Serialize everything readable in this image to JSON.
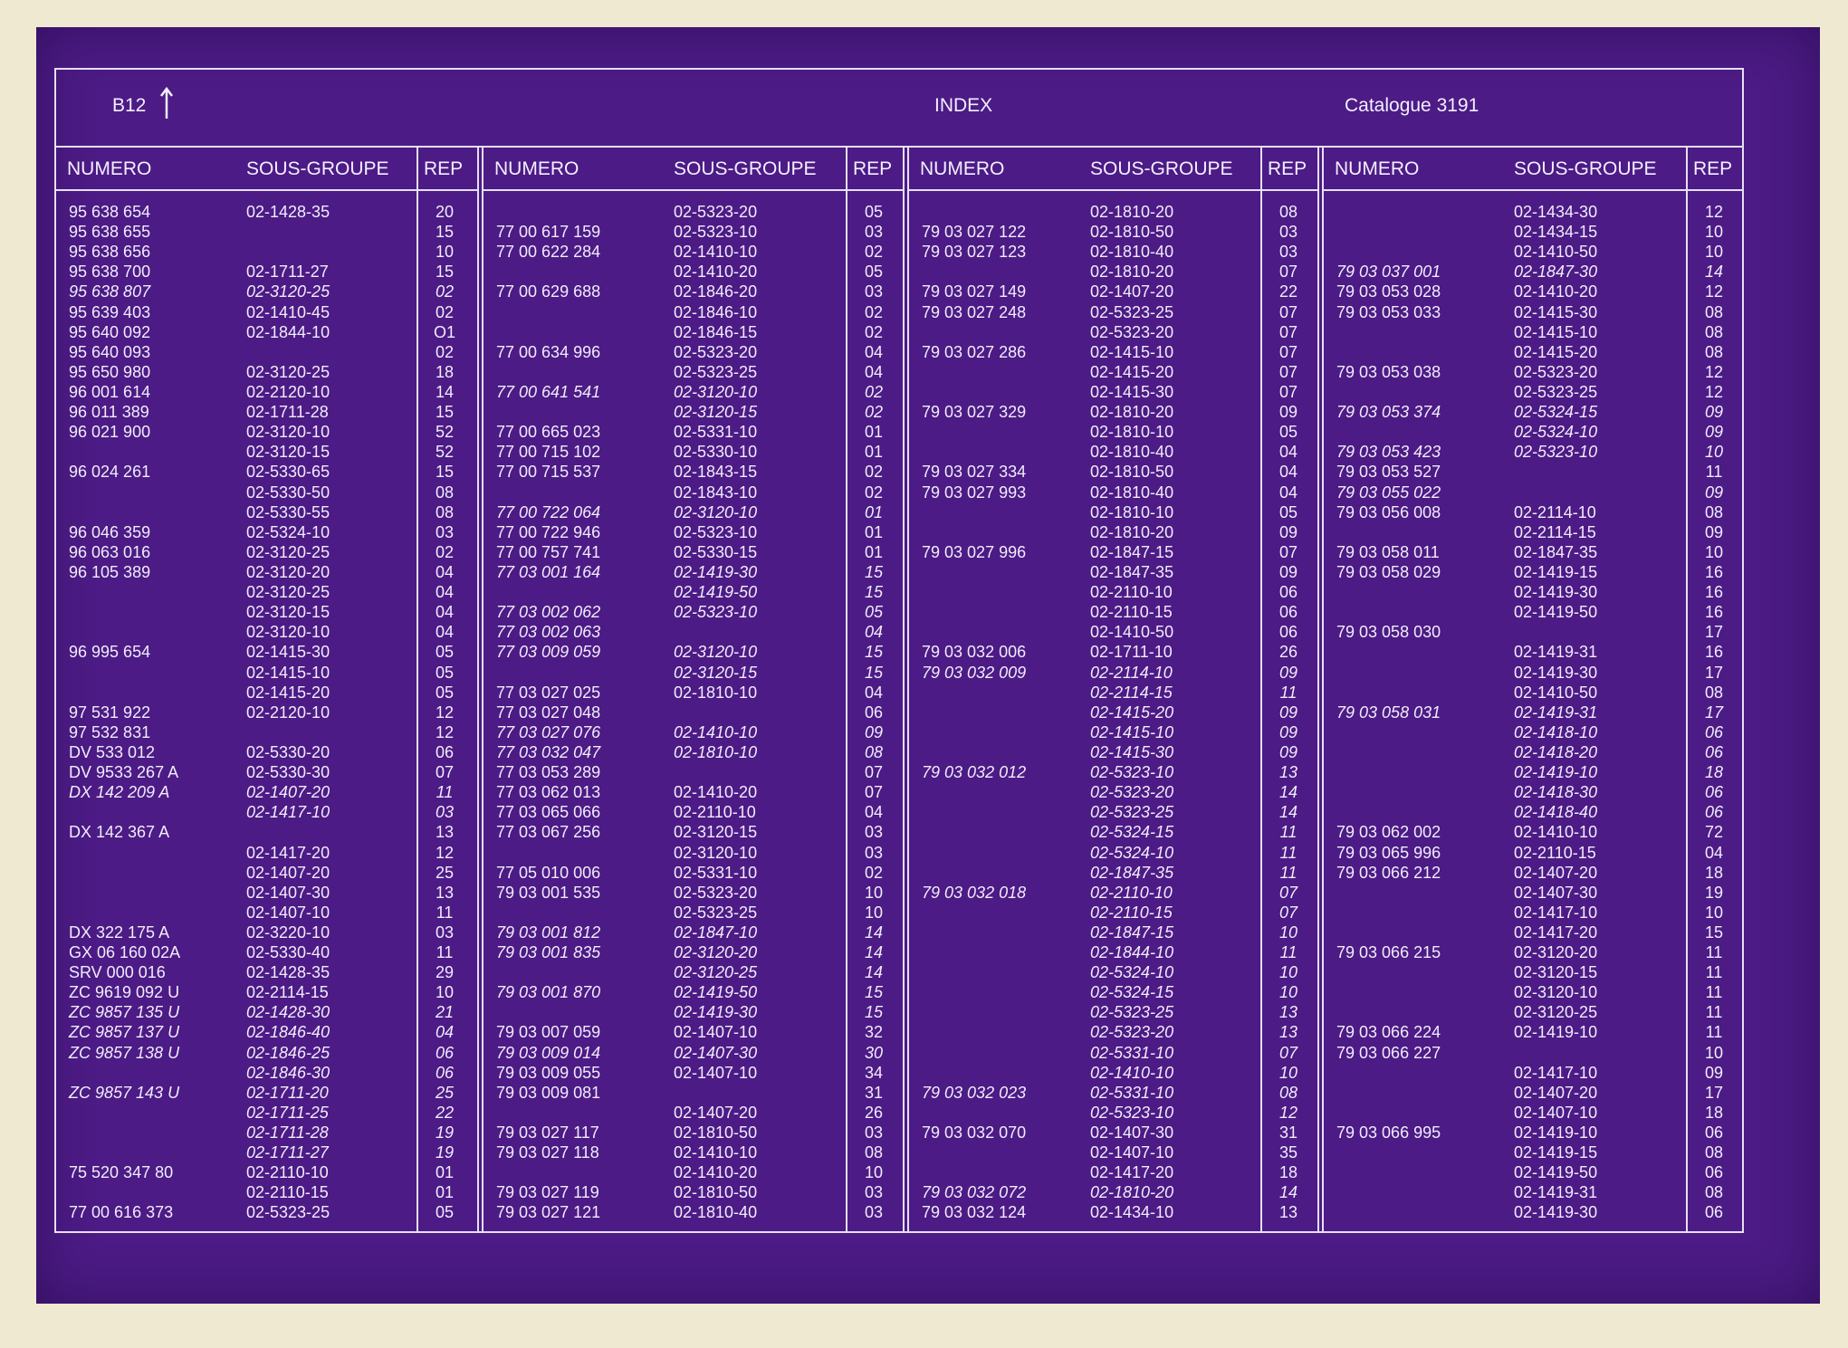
{
  "header": {
    "page": "B12",
    "title": "INDEX",
    "catalogue": "Catalogue 3191"
  },
  "column_headers": {
    "numero": "NUMERO",
    "sous_groupe": "SOUS-GROUPE",
    "rep": "REP"
  },
  "columns": [
    [
      {
        "n": "95 638 654",
        "s": "02-1428-35",
        "r": "20"
      },
      {
        "n": "95 638 655",
        "s": "",
        "r": "15"
      },
      {
        "n": "95 638 656",
        "s": "",
        "r": "10"
      },
      {
        "n": "95 638 700",
        "s": "02-1711-27",
        "r": "15"
      },
      {
        "n": "95 638 807",
        "s": "02-3120-25",
        "r": "02",
        "i": true
      },
      {
        "n": "95 639 403",
        "s": "02-1410-45",
        "r": "02"
      },
      {
        "n": "95 640 092",
        "s": "02-1844-10",
        "r": "O1"
      },
      {
        "n": "95 640 093",
        "s": "",
        "r": "02"
      },
      {
        "n": "95 650 980",
        "s": "02-3120-25",
        "r": "18"
      },
      {
        "n": "96 001 614",
        "s": "02-2120-10",
        "r": "14"
      },
      {
        "n": "96 011 389",
        "s": "02-1711-28",
        "r": "15"
      },
      {
        "n": "96 021 900",
        "s": "02-3120-10",
        "r": "52"
      },
      {
        "n": "",
        "s": "02-3120-15",
        "r": "52"
      },
      {
        "n": "96 024 261",
        "s": "02-5330-65",
        "r": "15"
      },
      {
        "n": "",
        "s": "02-5330-50",
        "r": "08"
      },
      {
        "n": "",
        "s": "02-5330-55",
        "r": "08"
      },
      {
        "n": "96 046 359",
        "s": "02-5324-10",
        "r": "03"
      },
      {
        "n": "96 063 016",
        "s": "02-3120-25",
        "r": "02"
      },
      {
        "n": "96 105 389",
        "s": "02-3120-20",
        "r": "04"
      },
      {
        "n": "",
        "s": "02-3120-25",
        "r": "04"
      },
      {
        "n": "",
        "s": "02-3120-15",
        "r": "04"
      },
      {
        "n": "",
        "s": "02-3120-10",
        "r": "04"
      },
      {
        "n": "96 995 654",
        "s": "02-1415-30",
        "r": "05"
      },
      {
        "n": "",
        "s": "02-1415-10",
        "r": "05"
      },
      {
        "n": "",
        "s": "02-1415-20",
        "r": "05"
      },
      {
        "n": "97 531 922",
        "s": "02-2120-10",
        "r": "12"
      },
      {
        "n": "97 532 831",
        "s": "",
        "r": "12"
      },
      {
        "n": "DV 533 012",
        "s": "02-5330-20",
        "r": "06"
      },
      {
        "n": "DV 9533 267 A",
        "s": "02-5330-30",
        "r": "07"
      },
      {
        "n": "DX 142 209 A",
        "s": "02-1407-20",
        "r": "11",
        "i": true
      },
      {
        "n": "",
        "s": "02-1417-10",
        "r": "03",
        "i": true
      },
      {
        "n": "DX 142 367 A",
        "s": "",
        "r": "13"
      },
      {
        "n": "",
        "s": "02-1417-20",
        "r": "12"
      },
      {
        "n": "",
        "s": "02-1407-20",
        "r": "25"
      },
      {
        "n": "",
        "s": "02-1407-30",
        "r": "13"
      },
      {
        "n": "",
        "s": "02-1407-10",
        "r": "11"
      },
      {
        "n": "DX 322 175 A",
        "s": "02-3220-10",
        "r": "03"
      },
      {
        "n": "GX 06 160 02A",
        "s": "02-5330-40",
        "r": "11"
      },
      {
        "n": "SRV 000 016",
        "s": "02-1428-35",
        "r": "29"
      },
      {
        "n": "ZC 9619 092 U",
        "s": "02-2114-15",
        "r": "10"
      },
      {
        "n": "ZC 9857 135 U",
        "s": "02-1428-30",
        "r": "21",
        "i": true
      },
      {
        "n": "ZC 9857 137 U",
        "s": "02-1846-40",
        "r": "04",
        "i": true
      },
      {
        "n": "ZC 9857 138 U",
        "s": "02-1846-25",
        "r": "06",
        "i": true
      },
      {
        "n": "",
        "s": "02-1846-30",
        "r": "06",
        "i": true
      },
      {
        "n": "ZC 9857 143 U",
        "s": "02-1711-20",
        "r": "25",
        "i": true
      },
      {
        "n": "",
        "s": "02-1711-25",
        "r": "22",
        "i": true
      },
      {
        "n": "",
        "s": "02-1711-28",
        "r": "19",
        "i": true
      },
      {
        "n": "",
        "s": "02-1711-27",
        "r": "19",
        "i": true
      },
      {
        "n": "75 520 347 80",
        "s": "02-2110-10",
        "r": "01"
      },
      {
        "n": "",
        "s": "02-2110-15",
        "r": "01"
      },
      {
        "n": "77 00 616 373",
        "s": "02-5323-25",
        "r": "05"
      }
    ],
    [
      {
        "n": "",
        "s": "02-5323-20",
        "r": "05"
      },
      {
        "n": "77 00 617 159",
        "s": "02-5323-10",
        "r": "03"
      },
      {
        "n": "77 00 622 284",
        "s": "02-1410-10",
        "r": "02"
      },
      {
        "n": "",
        "s": "02-1410-20",
        "r": "05"
      },
      {
        "n": "77 00 629 688",
        "s": "02-1846-20",
        "r": "03"
      },
      {
        "n": "",
        "s": "02-1846-10",
        "r": "02"
      },
      {
        "n": "",
        "s": "02-1846-15",
        "r": "02"
      },
      {
        "n": "77 00 634 996",
        "s": "02-5323-20",
        "r": "04"
      },
      {
        "n": "",
        "s": "02-5323-25",
        "r": "04"
      },
      {
        "n": "77 00 641 541",
        "s": "02-3120-10",
        "r": "02",
        "i": true
      },
      {
        "n": "",
        "s": "02-3120-15",
        "r": "02",
        "i": true
      },
      {
        "n": "77 00 665 023",
        "s": "02-5331-10",
        "r": "01"
      },
      {
        "n": "77 00 715 102",
        "s": "02-5330-10",
        "r": "01"
      },
      {
        "n": "77 00 715 537",
        "s": "02-1843-15",
        "r": "02"
      },
      {
        "n": "",
        "s": "02-1843-10",
        "r": "02"
      },
      {
        "n": "77 00 722 064",
        "s": "02-3120-10",
        "r": "01",
        "i": true
      },
      {
        "n": "77 00 722 946",
        "s": "02-5323-10",
        "r": "01"
      },
      {
        "n": "77 00 757 741",
        "s": "02-5330-15",
        "r": "01"
      },
      {
        "n": "77 03 001 164",
        "s": "02-1419-30",
        "r": "15",
        "i": true
      },
      {
        "n": "",
        "s": "02-1419-50",
        "r": "15",
        "i": true
      },
      {
        "n": "77 03 002 062",
        "s": "02-5323-10",
        "r": "05",
        "i": true
      },
      {
        "n": "77 03 002 063",
        "s": "",
        "r": "04",
        "i": true
      },
      {
        "n": "77 03 009 059",
        "s": "02-3120-10",
        "r": "15",
        "i": true
      },
      {
        "n": "",
        "s": "02-3120-15",
        "r": "15",
        "i": true
      },
      {
        "n": "77 03 027 025",
        "s": "02-1810-10",
        "r": "04"
      },
      {
        "n": "77 03 027 048",
        "s": "",
        "r": "06"
      },
      {
        "n": "77 03 027 076",
        "s": "02-1410-10",
        "r": "09",
        "i": true
      },
      {
        "n": "77 03 032 047",
        "s": "02-1810-10",
        "r": "08",
        "i": true
      },
      {
        "n": "77 03 053 289",
        "s": "",
        "r": "07"
      },
      {
        "n": "77 03 062 013",
        "s": "02-1410-20",
        "r": "07"
      },
      {
        "n": "77 03 065 066",
        "s": "02-2110-10",
        "r": "04"
      },
      {
        "n": "77 03 067 256",
        "s": "02-3120-15",
        "r": "03"
      },
      {
        "n": "",
        "s": "02-3120-10",
        "r": "03"
      },
      {
        "n": "77 05 010 006",
        "s": "02-5331-10",
        "r": "02"
      },
      {
        "n": "79 03 001 535",
        "s": "02-5323-20",
        "r": "10"
      },
      {
        "n": "",
        "s": "02-5323-25",
        "r": "10"
      },
      {
        "n": "79 03 001 812",
        "s": "02-1847-10",
        "r": "14",
        "i": true
      },
      {
        "n": "79 03 001 835",
        "s": "02-3120-20",
        "r": "14",
        "i": true
      },
      {
        "n": "",
        "s": "02-3120-25",
        "r": "14",
        "i": true
      },
      {
        "n": "79 03 001 870",
        "s": "02-1419-50",
        "r": "15",
        "i": true
      },
      {
        "n": "",
        "s": "02-1419-30",
        "r": "15",
        "i": true
      },
      {
        "n": "79 03 007 059",
        "s": "02-1407-10",
        "r": "32"
      },
      {
        "n": "79 03 009 014",
        "s": "02-1407-30",
        "r": "30",
        "i": true
      },
      {
        "n": "79 03 009 055",
        "s": "02-1407-10",
        "r": "34"
      },
      {
        "n": "79 03 009 081",
        "s": "",
        "r": "31"
      },
      {
        "n": "",
        "s": "02-1407-20",
        "r": "26"
      },
      {
        "n": "79 03 027 117",
        "s": "02-1810-50",
        "r": "03"
      },
      {
        "n": "79 03 027 118",
        "s": "02-1410-10",
        "r": "08"
      },
      {
        "n": "",
        "s": "02-1410-20",
        "r": "10"
      },
      {
        "n": "79 03 027 119",
        "s": "02-1810-50",
        "r": "03"
      },
      {
        "n": "79 03 027 121",
        "s": "02-1810-40",
        "r": "03"
      }
    ],
    [
      {
        "n": "",
        "s": "02-1810-20",
        "r": "08"
      },
      {
        "n": "79 03 027 122",
        "s": "02-1810-50",
        "r": "03"
      },
      {
        "n": "79 03 027 123",
        "s": "02-1810-40",
        "r": "03"
      },
      {
        "n": "",
        "s": "02-1810-20",
        "r": "07"
      },
      {
        "n": "79 03 027 149",
        "s": "02-1407-20",
        "r": "22"
      },
      {
        "n": "79 03 027 248",
        "s": "02-5323-25",
        "r": "07"
      },
      {
        "n": "",
        "s": "02-5323-20",
        "r": "07"
      },
      {
        "n": "79 03 027 286",
        "s": "02-1415-10",
        "r": "07"
      },
      {
        "n": "",
        "s": "02-1415-20",
        "r": "07"
      },
      {
        "n": "",
        "s": "02-1415-30",
        "r": "07"
      },
      {
        "n": "79 03 027 329",
        "s": "02-1810-20",
        "r": "09"
      },
      {
        "n": "",
        "s": "02-1810-10",
        "r": "05"
      },
      {
        "n": "",
        "s": "02-1810-40",
        "r": "04"
      },
      {
        "n": "79 03 027 334",
        "s": "02-1810-50",
        "r": "04"
      },
      {
        "n": "79 03 027 993",
        "s": "02-1810-40",
        "r": "04"
      },
      {
        "n": "",
        "s": "02-1810-10",
        "r": "05"
      },
      {
        "n": "",
        "s": "02-1810-20",
        "r": "09"
      },
      {
        "n": "79 03 027 996",
        "s": "02-1847-15",
        "r": "07"
      },
      {
        "n": "",
        "s": "02-1847-35",
        "r": "09"
      },
      {
        "n": "",
        "s": "02-2110-10",
        "r": "06"
      },
      {
        "n": "",
        "s": "02-2110-15",
        "r": "06"
      },
      {
        "n": "",
        "s": "02-1410-50",
        "r": "06"
      },
      {
        "n": "79 03 032 006",
        "s": "02-1711-10",
        "r": "26"
      },
      {
        "n": "79 03 032 009",
        "s": "02-2114-10",
        "r": "09",
        "i": true
      },
      {
        "n": "",
        "s": "02-2114-15",
        "r": "11",
        "i": true
      },
      {
        "n": "",
        "s": "02-1415-20",
        "r": "09",
        "i": true
      },
      {
        "n": "",
        "s": "02-1415-10",
        "r": "09",
        "i": true
      },
      {
        "n": "",
        "s": "02-1415-30",
        "r": "09",
        "i": true
      },
      {
        "n": "79 03 032 012",
        "s": "02-5323-10",
        "r": "13",
        "i": true
      },
      {
        "n": "",
        "s": "02-5323-20",
        "r": "14",
        "i": true
      },
      {
        "n": "",
        "s": "02-5323-25",
        "r": "14",
        "i": true
      },
      {
        "n": "",
        "s": "02-5324-15",
        "r": "11",
        "i": true
      },
      {
        "n": "",
        "s": "02-5324-10",
        "r": "11",
        "i": true
      },
      {
        "n": "",
        "s": "02-1847-35",
        "r": "11",
        "i": true
      },
      {
        "n": "79 03 032 018",
        "s": "02-2110-10",
        "r": "07",
        "i": true
      },
      {
        "n": "",
        "s": "02-2110-15",
        "r": "07",
        "i": true
      },
      {
        "n": "",
        "s": "02-1847-15",
        "r": "10",
        "i": true
      },
      {
        "n": "",
        "s": "02-1844-10",
        "r": "11",
        "i": true
      },
      {
        "n": "",
        "s": "02-5324-10",
        "r": "10",
        "i": true
      },
      {
        "n": "",
        "s": "02-5324-15",
        "r": "10",
        "i": true
      },
      {
        "n": "",
        "s": "02-5323-25",
        "r": "13",
        "i": true
      },
      {
        "n": "",
        "s": "02-5323-20",
        "r": "13",
        "i": true
      },
      {
        "n": "",
        "s": "02-5331-10",
        "r": "07",
        "i": true
      },
      {
        "n": "",
        "s": "02-1410-10",
        "r": "10",
        "i": true
      },
      {
        "n": "79 03 032 023",
        "s": "02-5331-10",
        "r": "08",
        "i": true
      },
      {
        "n": "",
        "s": "02-5323-10",
        "r": "12",
        "i": true
      },
      {
        "n": "79 03 032 070",
        "s": "02-1407-30",
        "r": "31"
      },
      {
        "n": "",
        "s": "02-1407-10",
        "r": "35"
      },
      {
        "n": "",
        "s": "02-1417-20",
        "r": "18"
      },
      {
        "n": "79 03 032 072",
        "s": "02-1810-20",
        "r": "14",
        "i": true
      },
      {
        "n": "79 03 032 124",
        "s": "02-1434-10",
        "r": "13"
      }
    ],
    [
      {
        "n": "",
        "s": "02-1434-30",
        "r": "12"
      },
      {
        "n": "",
        "s": "02-1434-15",
        "r": "10"
      },
      {
        "n": "",
        "s": "02-1410-50",
        "r": "10"
      },
      {
        "n": "79 03 037 001",
        "s": "02-1847-30",
        "r": "14",
        "i": true
      },
      {
        "n": "79 03 053 028",
        "s": "02-1410-20",
        "r": "12"
      },
      {
        "n": "79 03 053 033",
        "s": "02-1415-30",
        "r": "08"
      },
      {
        "n": "",
        "s": "02-1415-10",
        "r": "08"
      },
      {
        "n": "",
        "s": "02-1415-20",
        "r": "08"
      },
      {
        "n": "79 03 053 038",
        "s": "02-5323-20",
        "r": "12"
      },
      {
        "n": "",
        "s": "02-5323-25",
        "r": "12"
      },
      {
        "n": "79 03 053 374",
        "s": "02-5324-15",
        "r": "09",
        "i": true
      },
      {
        "n": "",
        "s": "02-5324-10",
        "r": "09",
        "i": true
      },
      {
        "n": "79 03 053 423",
        "s": "02-5323-10",
        "r": "10",
        "i": true
      },
      {
        "n": "79 03 053 527",
        "s": "",
        "r": "11"
      },
      {
        "n": "79 03 055 022",
        "s": "",
        "r": "09",
        "i": true
      },
      {
        "n": "79 03 056 008",
        "s": "02-2114-10",
        "r": "08"
      },
      {
        "n": "",
        "s": "02-2114-15",
        "r": "09"
      },
      {
        "n": "79 03 058 011",
        "s": "02-1847-35",
        "r": "10"
      },
      {
        "n": "79 03 058 029",
        "s": "02-1419-15",
        "r": "16"
      },
      {
        "n": "",
        "s": "02-1419-30",
        "r": "16"
      },
      {
        "n": "",
        "s": "02-1419-50",
        "r": "16"
      },
      {
        "n": "79 03 058 030",
        "s": "",
        "r": "17"
      },
      {
        "n": "",
        "s": "02-1419-31",
        "r": "16"
      },
      {
        "n": "",
        "s": "02-1419-30",
        "r": "17"
      },
      {
        "n": "",
        "s": "02-1410-50",
        "r": "08"
      },
      {
        "n": "79 03 058 031",
        "s": "02-1419-31",
        "r": "17",
        "i": true
      },
      {
        "n": "",
        "s": "02-1418-10",
        "r": "06",
        "i": true
      },
      {
        "n": "",
        "s": "02-1418-20",
        "r": "06",
        "i": true
      },
      {
        "n": "",
        "s": "02-1419-10",
        "r": "18",
        "i": true
      },
      {
        "n": "",
        "s": "02-1418-30",
        "r": "06",
        "i": true
      },
      {
        "n": "",
        "s": "02-1418-40",
        "r": "06",
        "i": true
      },
      {
        "n": "79 03 062 002",
        "s": "02-1410-10",
        "r": "72"
      },
      {
        "n": "79 03 065 996",
        "s": "02-2110-15",
        "r": "04"
      },
      {
        "n": "79 03 066 212",
        "s": "02-1407-20",
        "r": "18"
      },
      {
        "n": "",
        "s": "02-1407-30",
        "r": "19"
      },
      {
        "n": "",
        "s": "02-1417-10",
        "r": "10"
      },
      {
        "n": "",
        "s": "02-1417-20",
        "r": "15"
      },
      {
        "n": "79 03 066 215",
        "s": "02-3120-20",
        "r": "11"
      },
      {
        "n": "",
        "s": "02-3120-15",
        "r": "11"
      },
      {
        "n": "",
        "s": "02-3120-10",
        "r": "11"
      },
      {
        "n": "",
        "s": "02-3120-25",
        "r": "11"
      },
      {
        "n": "79 03 066 224",
        "s": "02-1419-10",
        "r": "11"
      },
      {
        "n": "79 03 066 227",
        "s": "",
        "r": "10"
      },
      {
        "n": "",
        "s": "02-1417-10",
        "r": "09"
      },
      {
        "n": "",
        "s": "02-1407-20",
        "r": "17"
      },
      {
        "n": "",
        "s": "02-1407-10",
        "r": "18"
      },
      {
        "n": "79 03 066 995",
        "s": "02-1419-10",
        "r": "06"
      },
      {
        "n": "",
        "s": "02-1419-15",
        "r": "08"
      },
      {
        "n": "",
        "s": "02-1419-50",
        "r": "06"
      },
      {
        "n": "",
        "s": "02-1419-31",
        "r": "08"
      },
      {
        "n": "",
        "s": "02-1419-30",
        "r": "06"
      }
    ]
  ]
}
